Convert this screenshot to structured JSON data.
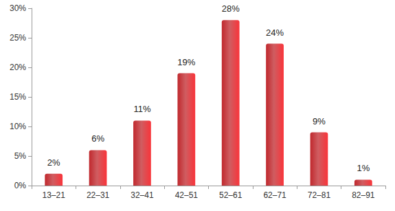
{
  "chart_data": {
    "type": "bar",
    "categories": [
      "13–21",
      "22–31",
      "32–41",
      "42–51",
      "52–61",
      "62–71",
      "72–81",
      "82–91"
    ],
    "values": [
      2,
      6,
      11,
      19,
      28,
      24,
      9,
      1
    ],
    "value_labels": [
      "2%",
      "6%",
      "11%",
      "19%",
      "28%",
      "24%",
      "9%",
      "1%"
    ],
    "color": "#c0282d",
    "ylim": [
      0,
      30
    ],
    "yticks": [
      {
        "value": 0,
        "label": "0%"
      },
      {
        "value": 5,
        "label": "5%"
      },
      {
        "value": 10,
        "label": "10%"
      },
      {
        "value": 15,
        "label": "15%"
      },
      {
        "value": 20,
        "label": "20%"
      },
      {
        "value": 25,
        "label": "25%"
      },
      {
        "value": 30,
        "label": "30%"
      }
    ],
    "grid": false,
    "data_labels": true
  }
}
